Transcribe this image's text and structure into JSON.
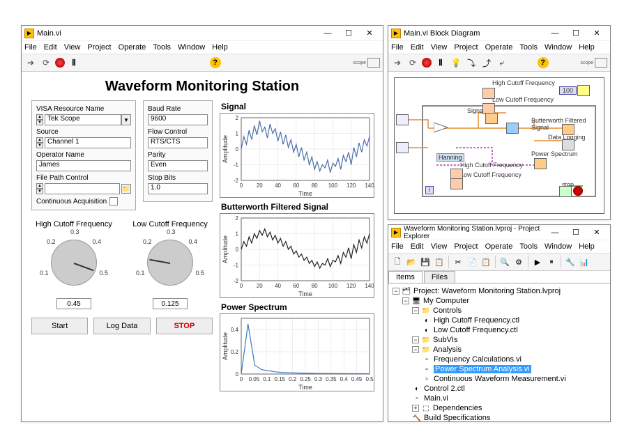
{
  "windows": {
    "front_panel": {
      "title": "Main.vi",
      "menus": [
        "File",
        "Edit",
        "View",
        "Project",
        "Operate",
        "Tools",
        "Window",
        "Help"
      ],
      "scope_label": "scope",
      "app_title": "Waveform Monitoring Station",
      "visa_label": "VISA Resource Name",
      "visa_value": "Tek Scope",
      "source_label": "Source",
      "source_value": "Channel 1",
      "operator_label": "Operator Name",
      "operator_value": "James",
      "filepath_label": "File Path Control",
      "filepath_value": "",
      "cont_acq_label": "Continuous Acquisition",
      "baud_label": "Baud Rate",
      "baud_value": "9600",
      "flow_label": "Flow Control",
      "flow_value": "RTS/CTS",
      "parity_label": "Parity",
      "parity_value": "Even",
      "stopbits_label": "Stop Bits",
      "stopbits_value": "1.0",
      "high_cutoff_label": "High Cutoff Frequency",
      "high_cutoff_value": "0.45",
      "high_cutoff_ticks": [
        "0.1",
        "0.2",
        "0.3",
        "0.4",
        "0.5"
      ],
      "low_cutoff_label": "Low Cutoff Frequency",
      "low_cutoff_value": "0.125",
      "low_cutoff_ticks": [
        "0.1",
        "0.2",
        "0.3",
        "0.4",
        "0.5"
      ],
      "btn_start": "Start",
      "btn_log": "Log Data",
      "btn_stop": "STOP",
      "signal_chart": {
        "title": "Signal",
        "xlabel": "Time",
        "ylabel": "Amplitude",
        "xlim": [
          0,
          140
        ],
        "xticks": [
          0,
          20,
          40,
          60,
          80,
          100,
          120,
          140
        ],
        "ylim": [
          -2,
          2
        ],
        "yticks": [
          -2,
          -1,
          0,
          1,
          2
        ],
        "color": "#4a6da7",
        "data": [
          0,
          0.8,
          0.3,
          1.2,
          0.6,
          1.5,
          0.9,
          1.8,
          1.1,
          1.4,
          0.7,
          1.6,
          1.0,
          1.3,
          0.5,
          1.1,
          0.3,
          0.9,
          0.1,
          0.6,
          -0.2,
          0.3,
          -0.5,
          0.1,
          -0.7,
          -0.2,
          -1.0,
          -0.5,
          -1.3,
          -0.8,
          -1.4,
          -1.0,
          -1.2,
          -0.7,
          -1.5,
          -0.9,
          -1.1,
          -0.6,
          -1.3,
          -0.4,
          -0.8,
          -0.2,
          -1.0,
          0.1,
          -0.5,
          0.4,
          -0.2,
          0.6,
          0.2,
          0.8
        ]
      },
      "butter_chart": {
        "title": "Butterworth Filtered Signal",
        "xlabel": "Time",
        "ylabel": "Amplitude",
        "xlim": [
          0,
          140
        ],
        "xticks": [
          0,
          20,
          40,
          60,
          80,
          100,
          120,
          140
        ],
        "ylim": [
          -2,
          2
        ],
        "yticks": [
          -2,
          -1,
          0,
          1,
          2
        ],
        "color": "#222",
        "data": [
          0,
          0.5,
          0.2,
          0.8,
          0.4,
          1.0,
          0.7,
          1.2,
          0.9,
          1.3,
          0.8,
          1.1,
          0.6,
          0.9,
          0.4,
          0.7,
          0.2,
          0.5,
          0.0,
          0.2,
          -0.3,
          -0.1,
          -0.5,
          -0.3,
          -0.7,
          -0.5,
          -0.9,
          -0.7,
          -1.1,
          -0.8,
          -1.2,
          -0.9,
          -1.0,
          -0.6,
          -1.1,
          -0.7,
          -0.8,
          -0.4,
          -0.9,
          -0.2,
          -0.5,
          0.1,
          -0.6,
          0.3,
          -0.2,
          0.6,
          0.1,
          0.8,
          0.4,
          1.0
        ]
      },
      "power_chart": {
        "title": "Power Spectrum",
        "xlabel": "Time",
        "ylabel": "Amplitude",
        "xlim": [
          0,
          0.5
        ],
        "xticks": [
          0,
          0.05,
          0.1,
          0.15,
          0.2,
          0.25,
          0.3,
          0.35,
          0.4,
          0.45,
          0.5
        ],
        "ylim": [
          0,
          0.5
        ],
        "yticks": [
          0,
          0.2,
          0.4
        ],
        "color": "#3b78c4",
        "data": [
          0,
          0.45,
          0.08,
          0.04,
          0.03,
          0.02,
          0.015,
          0.012,
          0.01,
          0.008,
          0.007,
          0.006,
          0.005,
          0.005,
          0.004,
          0.004,
          0.003,
          0.003,
          0.003,
          0.002
        ]
      }
    },
    "block_diagram": {
      "title": "Main.vi Block Diagram",
      "menus": [
        "File",
        "Edit",
        "View",
        "Project",
        "Operate",
        "Tools",
        "Window",
        "Help"
      ],
      "labels": {
        "high_cutoff": "High Cutoff Frequency",
        "low_cutoff": "Low Cutoff Frequency",
        "signal": "Signal",
        "butter": "Butterworth Filtered Signal",
        "power": "Power Spectrum",
        "data_log": "Data Logging",
        "hanning": "Hanning",
        "stop": "stop",
        "val100": "100"
      }
    },
    "project_explorer": {
      "title": "Waveform Monitoring Station.lvproj - Project Explorer",
      "menus": [
        "File",
        "Edit",
        "View",
        "Project",
        "Operate",
        "Tools",
        "Window",
        "Help"
      ],
      "tabs": [
        "Items",
        "Files"
      ],
      "active_tab": "Items",
      "tree": {
        "root": "Project: Waveform Monitoring Station.lvproj",
        "my_computer": "My Computer",
        "controls": "Controls",
        "high_ctl": "High Cutoff Frequency.ctl",
        "low_ctl": "Low Cutoff Frequency.ctl",
        "subvis": "SubVIs",
        "analysis": "Analysis",
        "freq_calc": "Frequency Calculations.vi",
        "power_analysis": "Power Spectrum Analysis.vi",
        "cont_wfm": "Continuous Waveform Measurement.vi",
        "control2": "Control 2.ctl",
        "main": "Main.vi",
        "deps": "Dependencies",
        "build": "Build Specifications"
      }
    }
  }
}
